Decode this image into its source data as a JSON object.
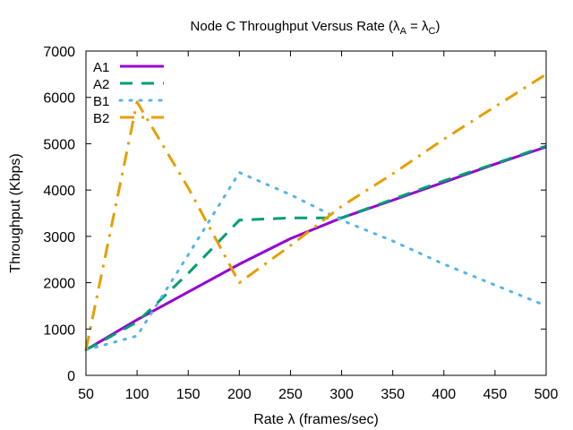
{
  "chart_data": {
    "type": "line",
    "title": {
      "prefix": "Node C Throughput Versus Rate (λ",
      "sub1": "A",
      "middle": " = λ",
      "sub2": "C",
      "suffix": ")"
    },
    "xlabel": "Rate λ (frames/sec)",
    "ylabel": "Throughput (Kbps)",
    "xlim": [
      50,
      500
    ],
    "ylim": [
      0,
      7000
    ],
    "xticks": [
      50,
      100,
      150,
      200,
      250,
      300,
      350,
      400,
      450,
      500
    ],
    "yticks": [
      0,
      1000,
      2000,
      3000,
      4000,
      5000,
      6000,
      7000
    ],
    "grid": false,
    "legend_position": "top-left",
    "series": [
      {
        "name": "A1",
        "color": "#9400d3",
        "style": "solid",
        "x": [
          50,
          100,
          150,
          200,
          250,
          300,
          350,
          400,
          450,
          500
        ],
        "y": [
          550,
          1200,
          1800,
          2400,
          2950,
          3400,
          3780,
          4170,
          4560,
          4930
        ]
      },
      {
        "name": "A2",
        "color": "#009e73",
        "style": "dashed",
        "x": [
          50,
          100,
          150,
          200,
          250,
          300,
          350,
          400,
          450,
          500
        ],
        "y": [
          550,
          1150,
          2200,
          3350,
          3400,
          3400,
          3800,
          4200,
          4570,
          4950
        ]
      },
      {
        "name": "B1",
        "color": "#56b4e9",
        "style": "dotted",
        "x": [
          50,
          100,
          150,
          200,
          250,
          300,
          350,
          400,
          450,
          500
        ],
        "y": [
          550,
          850,
          2600,
          4380,
          3900,
          3350,
          2900,
          2400,
          1950,
          1500
        ]
      },
      {
        "name": "B2",
        "color": "#e69f00",
        "style": "dashdot",
        "x": [
          50,
          100,
          150,
          200,
          250,
          300,
          350,
          400,
          450,
          500
        ],
        "y": [
          550,
          5900,
          4050,
          2000,
          2800,
          3650,
          4350,
          5100,
          5800,
          6500
        ]
      }
    ]
  }
}
